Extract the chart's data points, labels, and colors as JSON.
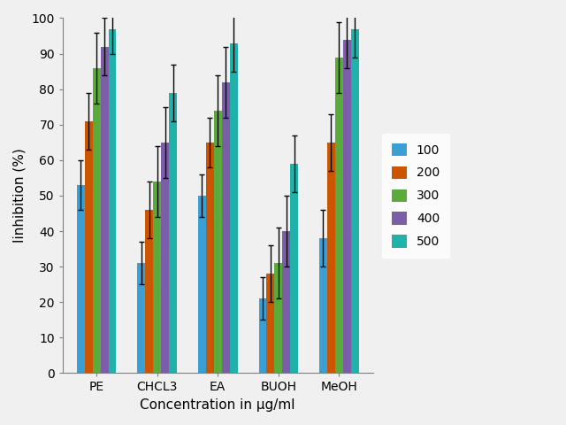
{
  "categories": [
    "PE",
    "CHCL3",
    "EA",
    "BUOH",
    "MeOH"
  ],
  "series_labels": [
    "100",
    "200",
    "300",
    "400",
    "500"
  ],
  "colors": [
    "#3a9fd4",
    "#cc5500",
    "#5aaa3c",
    "#7b5ea7",
    "#20b2aa"
  ],
  "bar_values": {
    "PE": [
      53,
      71,
      86,
      92,
      97
    ],
    "CHCL3": [
      31,
      46,
      54,
      65,
      79
    ],
    "EA": [
      50,
      65,
      74,
      82,
      93
    ],
    "BUOH": [
      21,
      28,
      31,
      40,
      59
    ],
    "MeOH": [
      38,
      65,
      89,
      94,
      97
    ]
  },
  "error_bars": {
    "PE": [
      7,
      8,
      10,
      8,
      7
    ],
    "CHCL3": [
      6,
      8,
      10,
      10,
      8
    ],
    "EA": [
      6,
      7,
      10,
      10,
      8
    ],
    "BUOH": [
      6,
      8,
      10,
      10,
      8
    ],
    "MeOH": [
      8,
      8,
      10,
      8,
      8
    ]
  },
  "xlabel": "Concentration in μg/ml",
  "ylabel": "Iinhibition (%)",
  "ylim": [
    0,
    100
  ],
  "yticks": [
    0,
    10,
    20,
    30,
    40,
    50,
    60,
    70,
    80,
    90,
    100
  ],
  "bar_width": 0.13,
  "legend_fontsize": 10,
  "axis_fontsize": 11,
  "tick_fontsize": 10,
  "bg_color": "#f0f0f0",
  "plot_bg_color": "#f0f0f0"
}
